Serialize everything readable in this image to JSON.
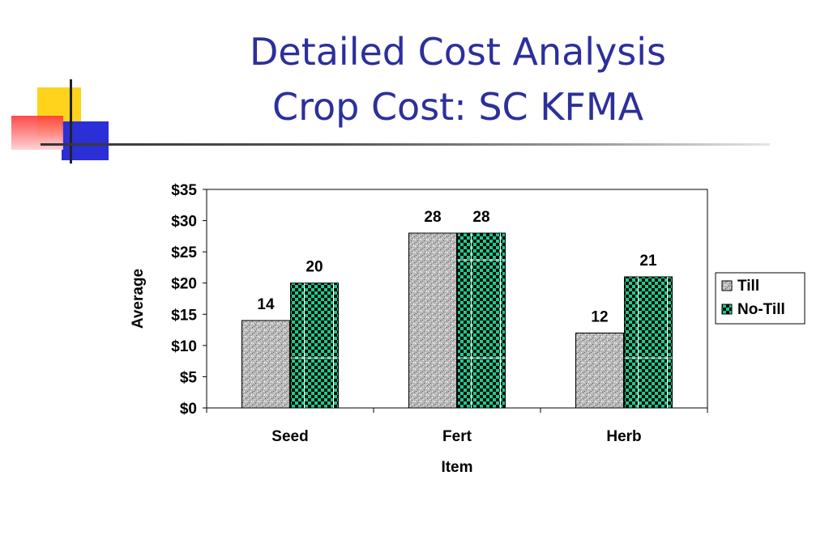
{
  "slide": {
    "title_line1": "Detailed Cost Analysis",
    "title_line2": "Crop Cost: SC KFMA"
  },
  "colors": {
    "title": "#2d2f9b",
    "deco_yellow": "#ffd21c",
    "deco_blue": "#2b2fd6",
    "deco_red": "#ff3b3b",
    "till_fill": "#b8b8b8",
    "notill_fill": "#1fc98c"
  },
  "chart_data": {
    "type": "bar",
    "categories": [
      "Seed",
      "Fert",
      "Herb"
    ],
    "series": [
      {
        "name": "Till",
        "values": [
          14,
          28,
          12
        ],
        "labels": [
          "14",
          "28",
          "12"
        ]
      },
      {
        "name": "No-Till",
        "values": [
          20,
          28,
          21
        ],
        "labels": [
          "20",
          "28",
          "21"
        ]
      }
    ],
    "xlabel": "Item",
    "ylabel": "Average",
    "ylim": [
      0,
      35
    ],
    "yticks": [
      0,
      5,
      10,
      15,
      20,
      25,
      30,
      35
    ],
    "ytick_labels": [
      "$0",
      "$5",
      "$10",
      "$15",
      "$20",
      "$25",
      "$30",
      "$35"
    ],
    "legend_position": "right",
    "grid": false
  }
}
